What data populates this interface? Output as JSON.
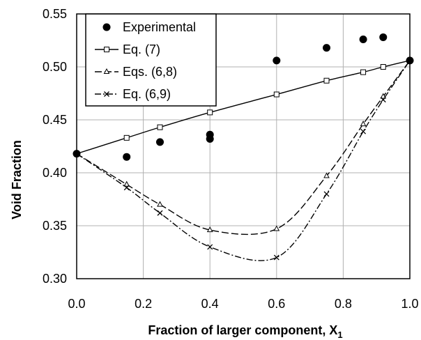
{
  "chart_data": {
    "type": "scatter",
    "xlabel": "Fraction of larger component, X",
    "xlabel_subscript": "1",
    "ylabel": "Void Fraction",
    "xlim": [
      0.0,
      1.0
    ],
    "ylim": [
      0.3,
      0.55
    ],
    "x_ticks": [
      "0.0",
      "0.2",
      "0.4",
      "0.6",
      "0.8",
      "1.0"
    ],
    "y_ticks": [
      "0.30",
      "0.35",
      "0.40",
      "0.45",
      "0.50",
      "0.55"
    ],
    "grid": true,
    "legend_position": "top-left",
    "series": [
      {
        "name": "Experimental",
        "style": "markers",
        "marker": "filled-circle",
        "points": [
          [
            0.0,
            0.418
          ],
          [
            0.15,
            0.415
          ],
          [
            0.25,
            0.429
          ],
          [
            0.4,
            0.432
          ],
          [
            0.4,
            0.436
          ],
          [
            0.6,
            0.506
          ],
          [
            0.75,
            0.518
          ],
          [
            0.86,
            0.526
          ],
          [
            0.92,
            0.528
          ],
          [
            1.0,
            0.506
          ]
        ]
      },
      {
        "name": "Eq. (7)",
        "style": "solid",
        "marker": "open-square",
        "points": [
          [
            0.0,
            0.418
          ],
          [
            0.15,
            0.433
          ],
          [
            0.25,
            0.443
          ],
          [
            0.4,
            0.457
          ],
          [
            0.6,
            0.474
          ],
          [
            0.75,
            0.487
          ],
          [
            0.86,
            0.495
          ],
          [
            0.92,
            0.5
          ],
          [
            1.0,
            0.506
          ]
        ]
      },
      {
        "name": "Eqs. (6,8)",
        "style": "dashed",
        "marker": "open-triangle",
        "points": [
          [
            0.0,
            0.418
          ],
          [
            0.15,
            0.389
          ],
          [
            0.25,
            0.37
          ],
          [
            0.4,
            0.346
          ],
          [
            0.6,
            0.347
          ],
          [
            0.75,
            0.397
          ],
          [
            0.86,
            0.446
          ],
          [
            0.92,
            0.472
          ],
          [
            1.0,
            0.506
          ]
        ]
      },
      {
        "name": "Eq. (6,9)",
        "style": "dash-dot",
        "marker": "x",
        "points": [
          [
            0.0,
            0.418
          ],
          [
            0.15,
            0.386
          ],
          [
            0.25,
            0.362
          ],
          [
            0.4,
            0.33
          ],
          [
            0.6,
            0.32
          ],
          [
            0.75,
            0.38
          ],
          [
            0.86,
            0.439
          ],
          [
            0.92,
            0.469
          ],
          [
            1.0,
            0.506
          ]
        ]
      }
    ]
  }
}
